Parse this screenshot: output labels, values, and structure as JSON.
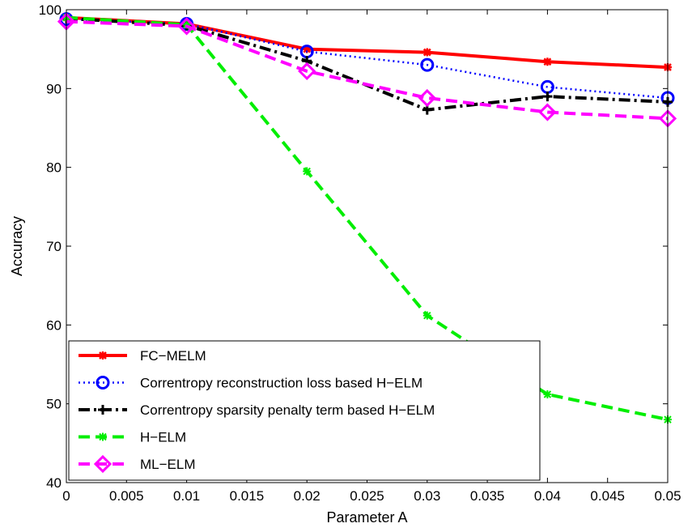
{
  "chart_data": {
    "type": "line",
    "xlabel": "Parameter A",
    "ylabel": "Accuracy",
    "xlim": [
      0,
      0.05
    ],
    "ylim": [
      40,
      100
    ],
    "x_ticks": [
      "0",
      "0.005",
      "0.01",
      "0.015",
      "0.02",
      "0.025",
      "0.03",
      "0.035",
      "0.04",
      "0.045",
      "0.05"
    ],
    "y_ticks": [
      "40",
      "50",
      "60",
      "70",
      "80",
      "90",
      "100"
    ],
    "grid": false,
    "legend_position": "bottom-left",
    "x": [
      0,
      0.01,
      0.02,
      0.03,
      0.04,
      0.05
    ],
    "series": [
      {
        "name": "FC−MELM",
        "values": [
          99.0,
          98.2,
          95.0,
          94.6,
          93.4,
          92.7
        ],
        "color": "#ff0000",
        "line_style": "solid",
        "marker": "star"
      },
      {
        "name": "Correntropy reconstruction loss based H−ELM",
        "values": [
          98.8,
          98.2,
          94.7,
          93.0,
          90.2,
          88.8
        ],
        "color": "#0000ff",
        "line_style": "dotted",
        "marker": "circle"
      },
      {
        "name": "Correntropy sparsity penalty term based H−ELM",
        "values": [
          98.9,
          98.0,
          93.5,
          87.3,
          89.0,
          88.3
        ],
        "color": "#000000",
        "line_style": "dash-dot",
        "marker": "plus"
      },
      {
        "name": "H−ELM",
        "values": [
          99.0,
          98.1,
          79.5,
          61.2,
          51.2,
          48.0
        ],
        "color": "#00ee00",
        "line_style": "dashed",
        "marker": "asterisk"
      },
      {
        "name": "ML−ELM",
        "values": [
          98.5,
          97.9,
          92.2,
          88.8,
          87.0,
          86.2
        ],
        "color": "#ff00ff",
        "line_style": "dashed",
        "marker": "diamond"
      }
    ]
  }
}
